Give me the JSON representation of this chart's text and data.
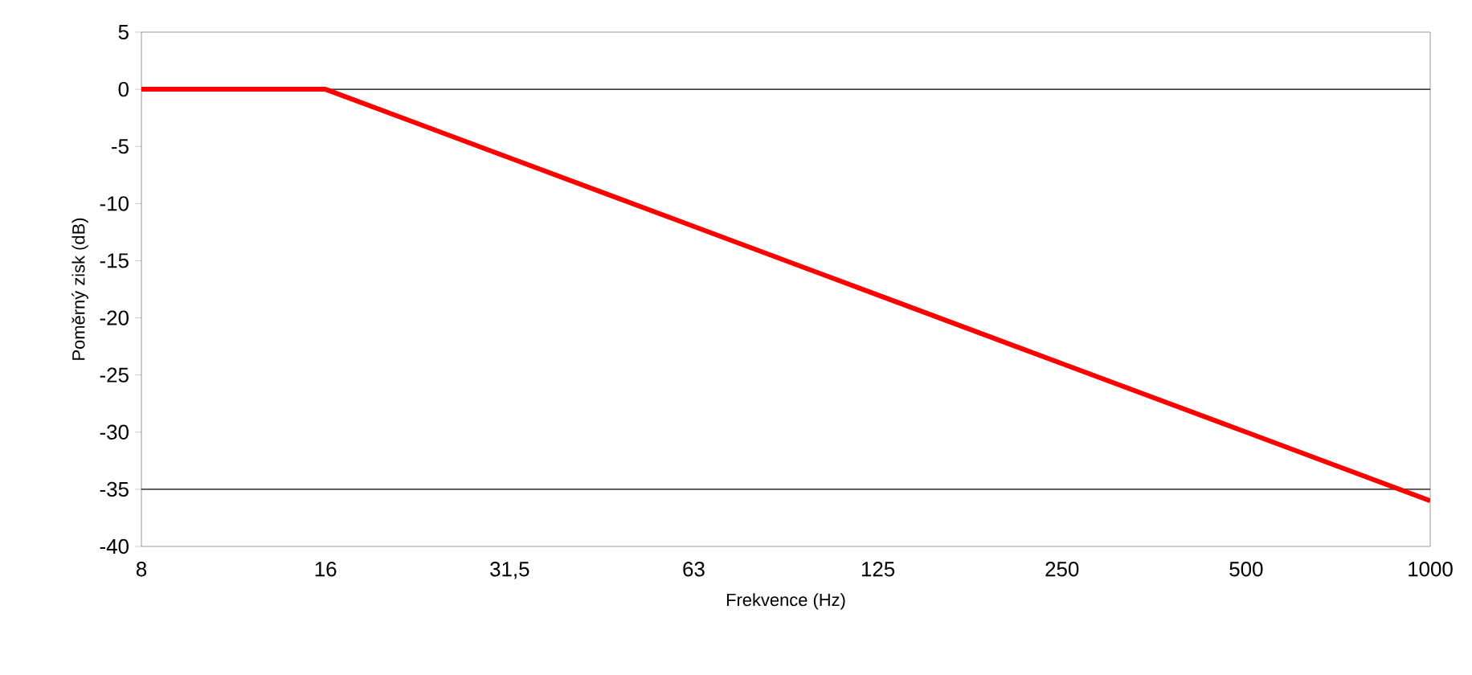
{
  "chart_data": {
    "type": "line",
    "xlabel": "Frekvence (Hz)",
    "ylabel": "Poměrný zisk (dB)",
    "categories": [
      "8",
      "16",
      "31,5",
      "63",
      "125",
      "250",
      "500",
      "1000"
    ],
    "series": [
      {
        "color": "#ff0000",
        "values": [
          0,
          0,
          -6,
          -12,
          -18,
          -24,
          -30,
          -36
        ]
      }
    ],
    "ylim": [
      -40,
      5
    ],
    "yticks": [
      -40,
      -35,
      -30,
      -25,
      -20,
      -15,
      -10,
      -5,
      0,
      5
    ],
    "ref_lines": [
      {
        "axis": "y",
        "value": 0,
        "color": "#000000"
      },
      {
        "axis": "y",
        "value": -35,
        "color": "#000000"
      }
    ],
    "grid": false,
    "marker": "none",
    "line_style": "solid"
  }
}
